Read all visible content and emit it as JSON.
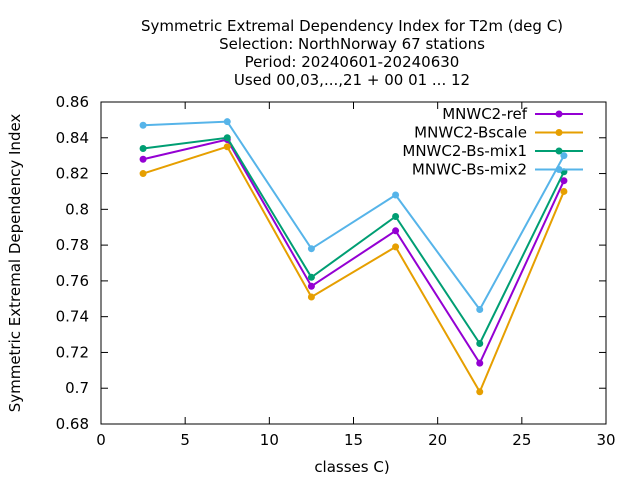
{
  "chart_data": {
    "type": "line",
    "title_lines": [
      "Symmetric Extremal Dependency Index  for T2m (deg C)",
      "Selection: NorthNorway     67 stations",
      "Period: 20240601-20240630",
      "Used 00,03,...,21 + 00 01 ... 12"
    ],
    "xlabel": "classes C)",
    "ylabel": "Symmetric Extremal Dependency Index",
    "xlim": [
      0,
      30
    ],
    "ylim": [
      0.68,
      0.86
    ],
    "xticks": [
      0,
      5,
      10,
      15,
      20,
      25,
      30
    ],
    "yticks": [
      0.68,
      0.7,
      0.72,
      0.74,
      0.76,
      0.78,
      0.8,
      0.82,
      0.84,
      0.86
    ],
    "xtick_labels": [
      "0",
      "5",
      "10",
      "15",
      "20",
      "25",
      "30"
    ],
    "ytick_labels": [
      "0.68",
      "0.7",
      "0.72",
      "0.74",
      "0.76",
      "0.78",
      "0.8",
      "0.82",
      "0.84",
      "0.86"
    ],
    "legend_position": "top-right",
    "grid": false,
    "x": [
      2.5,
      7.5,
      12.5,
      17.5,
      22.5,
      27.5
    ],
    "series": [
      {
        "name": "MNWC2-ref",
        "color": "#9400d3",
        "values": [
          0.828,
          0.839,
          0.757,
          0.788,
          0.714,
          0.816
        ]
      },
      {
        "name": "MNWC2-Bscale",
        "color": "#e69f00",
        "values": [
          0.82,
          0.835,
          0.751,
          0.779,
          0.698,
          0.81
        ]
      },
      {
        "name": "MNWC2-Bs-mix1",
        "color": "#009e73",
        "values": [
          0.834,
          0.84,
          0.762,
          0.796,
          0.725,
          0.821
        ]
      },
      {
        "name": "MNWC-Bs-mix2",
        "color": "#56b4e9",
        "values": [
          0.847,
          0.849,
          0.778,
          0.808,
          0.744,
          0.83
        ]
      }
    ]
  }
}
